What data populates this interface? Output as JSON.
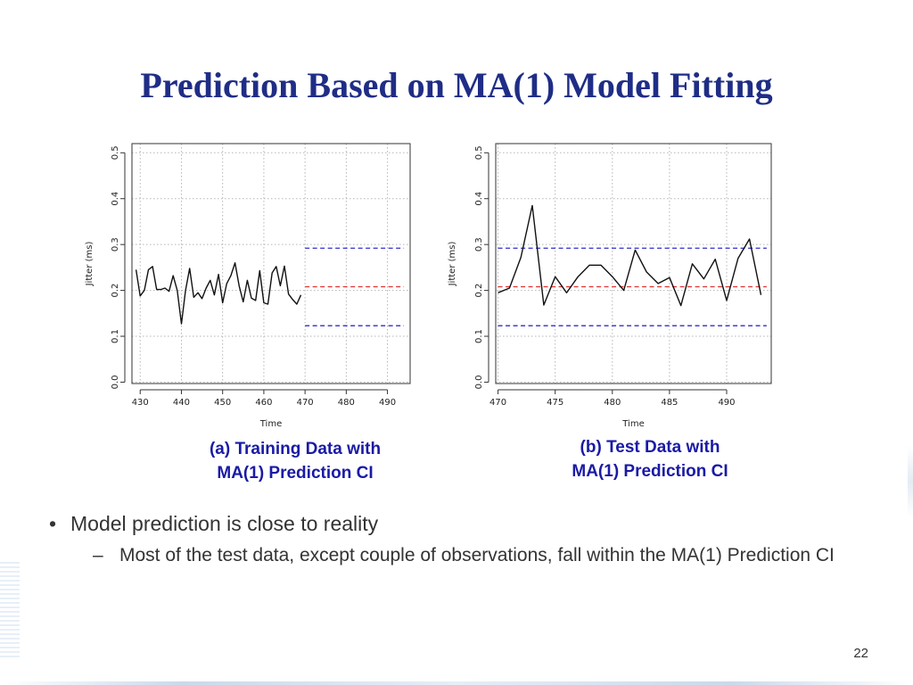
{
  "slide": {
    "title": "Prediction Based on MA(1) Model Fitting",
    "bullet": "Model prediction is close to reality",
    "bullet_mark": "•",
    "sub_bullet": "Most of the test data, except couple of observations, fall within the MA(1) Prediction CI",
    "sub_bullet_mark": "–",
    "page_number": "22"
  },
  "colors": {
    "title": "#1f2d86",
    "caption": "#1a1aa6",
    "series": "#111111",
    "mean_line": "#e03030",
    "ci_line": "#2c2ccc"
  },
  "chart_data": [
    {
      "type": "line",
      "caption": [
        "(a) Training Data with",
        "MA(1) Prediction CI"
      ],
      "xlabel": "Time",
      "ylabel": "Jitter (ms)",
      "xlim": [
        428,
        495.5
      ],
      "ylim": [
        -0.003,
        0.52
      ],
      "xticks": [
        430,
        440,
        450,
        460,
        470,
        480,
        490
      ],
      "yticks": [
        0.0,
        0.1,
        0.2,
        0.3,
        0.4,
        0.5
      ],
      "ytick_labels": [
        "0.0",
        "0.1",
        "0.2",
        "0.3",
        "0.4",
        "0.5"
      ],
      "grid": true,
      "series": [
        {
          "x": [
            429,
            430,
            431,
            432,
            433,
            434,
            435,
            436,
            437,
            438,
            439,
            440,
            441,
            442,
            443,
            444,
            445,
            446,
            447,
            448,
            449,
            450,
            451,
            452,
            453,
            454,
            455,
            456,
            457,
            458,
            459,
            460,
            461,
            462,
            463,
            464,
            465,
            466,
            467,
            468,
            469
          ],
          "values": [
            0.245,
            0.188,
            0.2,
            0.245,
            0.252,
            0.202,
            0.202,
            0.205,
            0.198,
            0.232,
            0.2,
            0.127,
            0.2,
            0.248,
            0.185,
            0.195,
            0.182,
            0.205,
            0.222,
            0.19,
            0.235,
            0.173,
            0.215,
            0.232,
            0.26,
            0.21,
            0.175,
            0.222,
            0.183,
            0.178,
            0.243,
            0.173,
            0.17,
            0.238,
            0.252,
            0.21,
            0.253,
            0.192,
            0.18,
            0.17,
            0.19
          ]
        }
      ],
      "hlines": [
        {
          "y": 0.292,
          "from": 470,
          "to": 494,
          "role": "upper-ci"
        },
        {
          "y": 0.208,
          "from": 470,
          "to": 494,
          "role": "mean"
        },
        {
          "y": 0.123,
          "from": 470,
          "to": 494,
          "role": "lower-ci"
        }
      ]
    },
    {
      "type": "line",
      "caption": [
        "(b) Test Data with",
        "MA(1) Prediction CI"
      ],
      "xlabel": "Time",
      "ylabel": "Jitter (ms)",
      "xlim": [
        469.8,
        493.9
      ],
      "ylim": [
        -0.003,
        0.52
      ],
      "xticks": [
        470,
        475,
        480,
        485,
        490
      ],
      "yticks": [
        0.0,
        0.1,
        0.2,
        0.3,
        0.4,
        0.5
      ],
      "ytick_labels": [
        "0.0",
        "0.1",
        "0.2",
        "0.3",
        "0.4",
        "0.5"
      ],
      "grid": true,
      "series": [
        {
          "x": [
            470,
            471,
            472,
            473,
            474,
            475,
            476,
            477,
            478,
            479,
            480,
            481,
            482,
            483,
            484,
            485,
            486,
            487,
            488,
            489,
            490,
            491,
            492,
            493
          ],
          "values": [
            0.195,
            0.205,
            0.272,
            0.385,
            0.168,
            0.23,
            0.195,
            0.23,
            0.255,
            0.255,
            0.23,
            0.2,
            0.288,
            0.24,
            0.215,
            0.228,
            0.167,
            0.258,
            0.225,
            0.268,
            0.178,
            0.27,
            0.312,
            0.19
          ]
        }
      ],
      "hlines": [
        {
          "y": 0.292,
          "from": 470,
          "to": 493.5,
          "role": "upper-ci"
        },
        {
          "y": 0.208,
          "from": 470,
          "to": 493.5,
          "role": "mean"
        },
        {
          "y": 0.123,
          "from": 470,
          "to": 493.5,
          "role": "lower-ci"
        }
      ]
    }
  ]
}
